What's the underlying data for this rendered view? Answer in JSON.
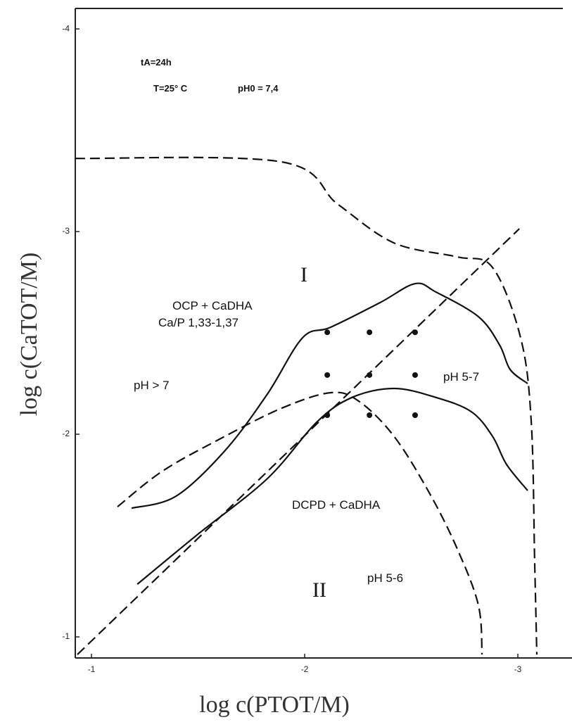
{
  "chart_data": {
    "type": "line",
    "xlabel": "log c(PTOT/M)",
    "ylabel": "log c(CaTOT/M)",
    "xlim": [
      -0.924,
      -3.254
    ],
    "ylim": [
      -0.896,
      -4.101
    ],
    "xticks": [
      -1,
      -2,
      -3
    ],
    "yticks": [
      -1,
      -2,
      -3,
      -4
    ],
    "annotations": [
      "tA=24h",
      "T=25° C",
      "pH0 = 7,4",
      "I",
      "OCP + CaDHA",
      "Ca/P 1,33-1,37",
      "pH > 7",
      "pH 5-7",
      "DCPD + CaDHA",
      "II",
      "pH 5-6"
    ],
    "series": [
      {
        "color": "#111",
        "dashed": true,
        "x": [
          -0.924,
          -1.891,
          -2.155,
          -2.419,
          -2.716,
          -2.881,
          -3.013,
          -3.063,
          -3.079,
          -3.089
        ],
        "y": [
          -3.361,
          -3.344,
          -3.135,
          -2.944,
          -2.875,
          -2.823,
          -2.476,
          -2.059,
          -1.365,
          -0.913
        ]
      },
      {
        "color": "#111",
        "dashed": true,
        "x": [
          -0.934,
          -3.007
        ],
        "y": [
          -0.913,
          -3.014
        ]
      },
      {
        "color": "#111",
        "dashed": false,
        "x": [
          -1.188,
          -1.396,
          -1.627,
          -1.825,
          -1.99,
          -2.122,
          -2.353,
          -2.518,
          -2.617,
          -2.815,
          -2.914,
          -2.964,
          -3.046
        ],
        "y": [
          -1.635,
          -1.694,
          -1.92,
          -2.198,
          -2.476,
          -2.528,
          -2.649,
          -2.743,
          -2.701,
          -2.58,
          -2.441,
          -2.319,
          -2.25
        ]
      },
      {
        "color": "#111",
        "dashed": false,
        "x": [
          -1.215,
          -1.495,
          -1.825,
          -2.056,
          -2.221,
          -2.419,
          -2.617,
          -2.782,
          -2.881,
          -2.947,
          -3.046
        ],
        "y": [
          -1.26,
          -1.503,
          -1.781,
          -2.059,
          -2.181,
          -2.226,
          -2.181,
          -2.111,
          -1.99,
          -1.851,
          -1.722
        ]
      },
      {
        "color": "#111",
        "dashed": true,
        "x": [
          -1.122,
          -1.33,
          -1.594,
          -1.891,
          -2.122,
          -2.254,
          -2.419,
          -2.584,
          -2.716,
          -2.815,
          -2.832
        ],
        "y": [
          -1.642,
          -1.816,
          -1.972,
          -2.128,
          -2.205,
          -2.163,
          -1.99,
          -1.712,
          -1.434,
          -1.156,
          -0.913
        ]
      }
    ],
    "points": {
      "color": "#111",
      "x": [
        -2.106,
        -2.304,
        -2.518,
        -2.106,
        -2.304,
        -2.518,
        -2.106,
        -2.304,
        -2.518
      ],
      "y": [
        -2.503,
        -2.503,
        -2.503,
        -2.292,
        -2.292,
        -2.292,
        -2.094,
        -2.094,
        -2.094
      ]
    }
  }
}
